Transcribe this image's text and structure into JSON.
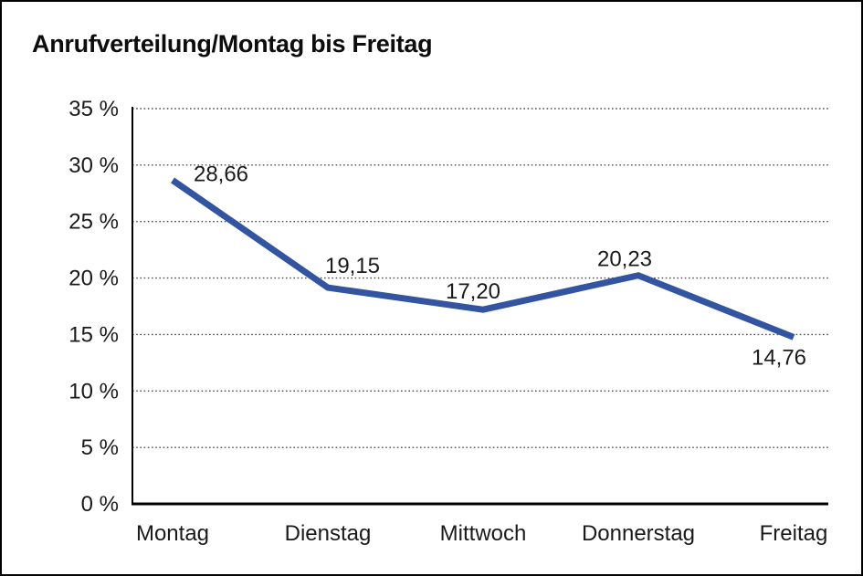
{
  "window": {
    "background_color": "#ffffff",
    "border_color": "#000000"
  },
  "chart_data": {
    "type": "line",
    "title": "Anrufverteilung/Montag bis Freitag",
    "categories": [
      "Montag",
      "Dienstag",
      "Mittwoch",
      "Donnerstag",
      "Freitag"
    ],
    "series": [
      {
        "name": "Anrufverteilung",
        "color": "#3354A0",
        "values": [
          28.66,
          19.15,
          17.2,
          20.23,
          14.76
        ],
        "point_labels": [
          "28,66",
          "19,15",
          "17,20",
          "20,23",
          "14,76"
        ]
      }
    ],
    "xlabel": "",
    "ylabel": "",
    "y_axis": {
      "min": 0,
      "max": 35,
      "step": 5,
      "unit": "%",
      "tick_labels": [
        "0 %",
        "5 %",
        "10 %",
        "15 %",
        "20 %",
        "25 %",
        "30 %",
        "35 %"
      ],
      "tick_values": [
        0,
        5,
        10,
        15,
        20,
        25,
        30,
        35
      ]
    },
    "grid": "horizontal-dotted",
    "grid_color": "#4d4d4d",
    "axis_color": "#000000",
    "legend_position": "none"
  }
}
